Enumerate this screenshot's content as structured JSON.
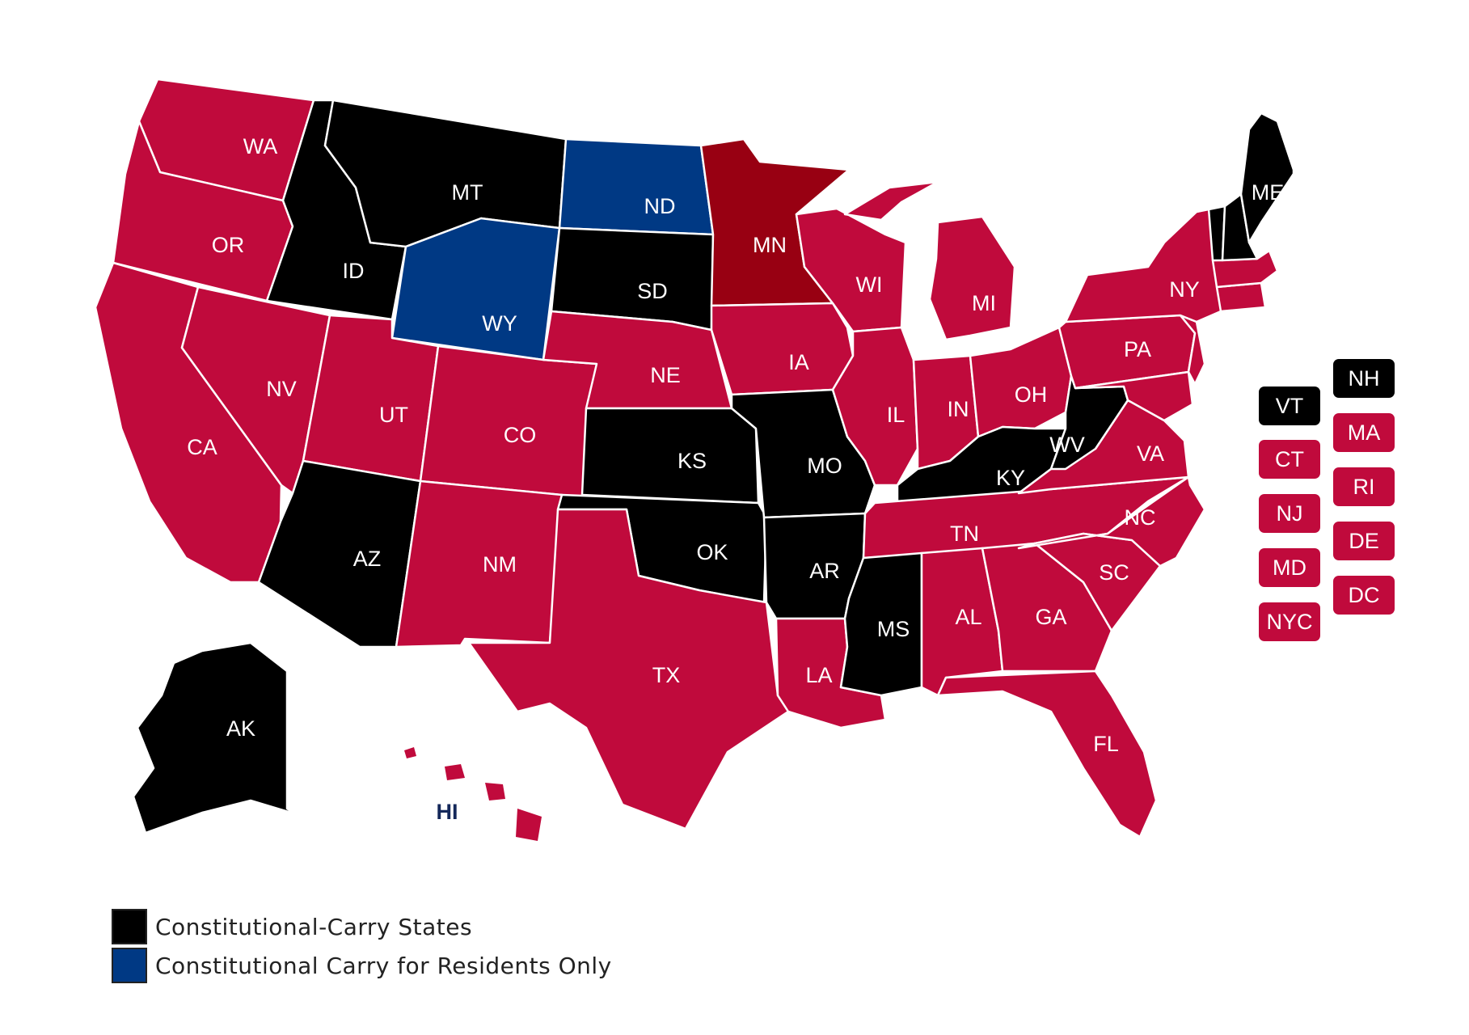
{
  "colors": {
    "constitutional": "#000000",
    "residents_only": "#003984",
    "permit": "#c00a3c",
    "minnesota": "#980012"
  },
  "states": {
    "WA": "WA",
    "OR": "OR",
    "CA": "CA",
    "NV": "NV",
    "ID": "ID",
    "MT": "MT",
    "WY": "WY",
    "UT": "UT",
    "AZ": "AZ",
    "CO": "CO",
    "NM": "NM",
    "ND": "ND",
    "SD": "SD",
    "NE": "NE",
    "KS": "KS",
    "OK": "OK",
    "TX": "TX",
    "MN": "MN",
    "IA": "IA",
    "MO": "MO",
    "AR": "AR",
    "LA": "LA",
    "WI": "WI",
    "IL": "IL",
    "MI": "MI",
    "IN": "IN",
    "OH": "OH",
    "KY": "KY",
    "TN": "TN",
    "MS": "MS",
    "AL": "AL",
    "GA": "GA",
    "FL": "FL",
    "SC": "SC",
    "NC": "NC",
    "VA": "VA",
    "WV": "WV",
    "PA": "PA",
    "NY": "NY",
    "ME": "ME",
    "AK": "AK",
    "HI": "HI"
  },
  "northeast_chips": {
    "VT": "VT",
    "NH": "NH",
    "MA": "MA",
    "CT": "CT",
    "RI": "RI",
    "NJ": "NJ",
    "DE": "DE",
    "MD": "MD",
    "DC": "DC",
    "NYC": "NYC"
  },
  "legend": {
    "constitutional": "Constitutional-Carry States",
    "residents_only": "Constitutional Carry for Residents Only"
  }
}
